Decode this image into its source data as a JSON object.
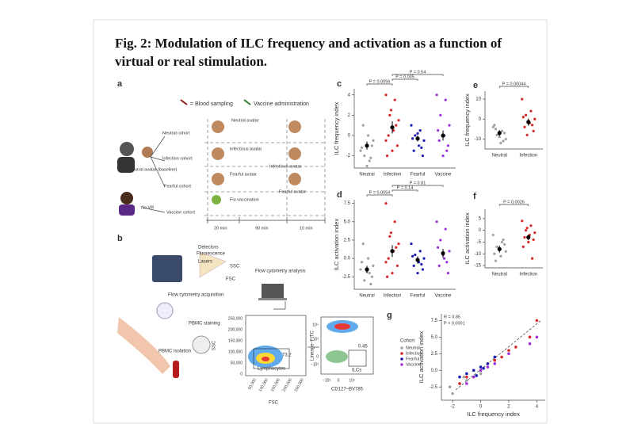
{
  "figure": {
    "title": "Fig. 2: Modulation of ILC frequency and activation as a function of virtual or real stimulation.",
    "panel_labels": [
      "a",
      "b",
      "c",
      "d",
      "e",
      "f",
      "g"
    ],
    "a": {
      "texts": [
        "= Blood sampling",
        "Vaccine administration",
        "Neutral avatar",
        "Neutral cohort",
        "Neutral avatar (baseline)",
        "Infection cohort",
        "Infectious avatar",
        "Fearful cohort",
        "Fearful avatar",
        "No VR",
        "Vaccine cohort",
        "Flu vaccination",
        "Infectious avatar",
        "Fearful avatar",
        "20 min",
        "90 min",
        "10 min"
      ]
    },
    "b": {
      "texts": [
        "Detectors",
        "Fluorescence",
        "Lasers",
        "SSC",
        "FSC",
        "Flow cytometry analysis",
        "Flow cytometry acquisition",
        "PBMC staining",
        "PBMC isolation",
        "250,000",
        "200,000",
        "150,000",
        "100,000",
        "50,000",
        "0",
        "50,000",
        "100,000",
        "150,000",
        "200,000",
        "250,000",
        "SSC",
        "FSC",
        "Lymphocytes",
        "73.2",
        "Lineage–FITC",
        "CD127–BV785",
        "ILCs",
        "0.45",
        "10⁴",
        "10³",
        "0",
        "−10³",
        "−10³",
        "0",
        "10³"
      ]
    }
  },
  "chart_data": [
    {
      "type": "strip",
      "ylabel": "ILC frequency index",
      "categories": [
        "Neutral",
        "Infection",
        "Fearful",
        "Vaccine"
      ],
      "colors": [
        "#a0a0a0",
        "#d62728",
        "#1c1cb0",
        "#9b30d9"
      ],
      "points": [
        [
          -1.5,
          -2.5,
          -2,
          -0.5,
          0,
          1,
          -1,
          -3,
          -1.2,
          -2.2
        ],
        [
          4,
          3.5,
          2,
          1.5,
          0.5,
          0,
          -1,
          -1.5,
          -2,
          1,
          2.5,
          -0.5
        ],
        [
          1,
          0.5,
          0,
          -0.5,
          -1,
          -1.5,
          -2,
          0.2,
          -0.3,
          -1.2
        ],
        [
          4,
          3.5,
          2,
          1,
          0,
          -0.5,
          -1,
          -2,
          0.5,
          -1.5
        ]
      ],
      "means": [
        -1,
        0.8,
        -0.3,
        0
      ],
      "errors": [
        0.4,
        0.6,
        0.3,
        0.5
      ],
      "ylim": [
        -3.2,
        4.6
      ],
      "yticks": [
        -2,
        0,
        2,
        4
      ],
      "annotations": [
        "P = 0.0056",
        "P = 0.035",
        "P = 0.54"
      ]
    },
    {
      "type": "strip",
      "ylabel": "ILC activation index",
      "categories": [
        "Neutral",
        "Infection",
        "Fearful",
        "Vaccine"
      ],
      "colors": [
        "#a0a0a0",
        "#d62728",
        "#1c1cb0",
        "#9b30d9"
      ],
      "points": [
        [
          -1.5,
          -2,
          -3,
          -1,
          0,
          2,
          -2.5,
          -1.8,
          -0.5,
          -3.5
        ],
        [
          7.5,
          5,
          3,
          2,
          1,
          0,
          -1,
          -2,
          -2.5,
          1.5,
          3.5,
          -0.5
        ],
        [
          2,
          1,
          0.5,
          0,
          -0.5,
          -1,
          -1.5,
          -2,
          0.3,
          -0.8
        ],
        [
          5,
          4,
          2.5,
          1,
          0,
          -1,
          -2,
          0.5,
          1.5,
          -0.5
        ]
      ],
      "means": [
        -1.5,
        1,
        -0.2,
        0.7
      ],
      "errors": [
        0.5,
        0.8,
        0.5,
        0.6
      ],
      "ylim": [
        -4.2,
        8
      ],
      "yticks": [
        {
          "value": -2.5,
          "label": "-2.5"
        },
        {
          "value": 0,
          "label": "0.0"
        },
        {
          "value": 2.5,
          "label": "2.5"
        },
        {
          "value": 5,
          "label": "5.0"
        },
        {
          "value": 7.5,
          "label": "7.5"
        }
      ],
      "annotations": [
        "P = 0.0054",
        "P = 0.14",
        "P = 0.81"
      ]
    },
    {
      "type": "strip",
      "ylabel": "ILC frequency index",
      "categories": [
        "Neutral",
        "Infection"
      ],
      "colors": [
        "#a0a0a0",
        "#d62728"
      ],
      "points": [
        [
          -4,
          -6,
          -8,
          -10,
          -12,
          -5,
          -7,
          -9,
          -3,
          -11
        ],
        [
          10,
          4,
          2,
          0,
          -2,
          -4,
          -6,
          -1,
          1,
          -3,
          -8
        ]
      ],
      "means": [
        -7,
        -1.5
      ],
      "errors": [
        1.5,
        1.8
      ],
      "ylim": [
        -15,
        14
      ],
      "yticks": [
        -10,
        0,
        10
      ],
      "annotations": [
        "P = 0.00044"
      ]
    },
    {
      "type": "strip",
      "ylabel": "ILC activation index",
      "categories": [
        "Neutral",
        "Infection"
      ],
      "colors": [
        "#a0a0a0",
        "#d62728"
      ],
      "points": [
        [
          -2,
          -5,
          -7,
          -9,
          -11,
          -13,
          -6,
          -8,
          -10,
          -4
        ],
        [
          4,
          2,
          0,
          -1,
          -2,
          -3,
          -4,
          -5,
          -7,
          -12,
          1
        ]
      ],
      "means": [
        -8,
        -3
      ],
      "errors": [
        1.5,
        1.2
      ],
      "ylim": [
        -16,
        9
      ],
      "yticks": [
        -15,
        -10,
        -5,
        0,
        5
      ],
      "annotations": [
        "P = 0.0026"
      ]
    },
    {
      "type": "scatter",
      "xlabel": "ILC frequency index",
      "ylabel": "ILC activation index",
      "legend_title": "Cohort",
      "annotations": [
        "R = 0.85",
        "P = 0.0001"
      ],
      "series": [
        {
          "name": "Neutral",
          "color": "#a0a0a0",
          "x": [
            -2,
            -1.5,
            -1,
            -0.5,
            0,
            1,
            -2.2,
            -1.2
          ],
          "y": [
            -3.5,
            -2,
            -1.5,
            0,
            -0.5,
            2,
            -2.5,
            -1
          ]
        },
        {
          "name": "Infection",
          "color": "#d62728",
          "x": [
            4,
            3.5,
            2,
            1.5,
            0.5,
            0,
            -1,
            -1.5,
            2.5,
            1
          ],
          "y": [
            7.5,
            5,
            3,
            2,
            1,
            0,
            -1,
            -2,
            3.5,
            1.5
          ]
        },
        {
          "name": "Fearful",
          "color": "#1c1cb0",
          "x": [
            1,
            0.5,
            0,
            -0.5,
            -1,
            -1.5,
            0.2,
            -0.3
          ],
          "y": [
            2,
            1,
            0.5,
            0,
            -0.5,
            -1,
            0.3,
            -0.8
          ]
        },
        {
          "name": "Vaccine",
          "color": "#9b30d9",
          "x": [
            4,
            3.5,
            2,
            1,
            0,
            -0.5,
            -1,
            0.5
          ],
          "y": [
            5,
            4,
            2.5,
            1,
            0,
            -1,
            -2,
            0.5
          ]
        }
      ],
      "xlim": [
        -2.8,
        4.6
      ],
      "xticks": [
        -2,
        0,
        2,
        4
      ],
      "ylim": [
        -4.5,
        8.5
      ],
      "yticks": [
        {
          "value": -2.5,
          "label": "-2.5"
        },
        {
          "value": 0,
          "label": "0.0"
        },
        {
          "value": 2.5,
          "label": "2.5"
        },
        {
          "value": 5,
          "label": "5.0"
        },
        {
          "value": 7.5,
          "label": "7.5"
        }
      ]
    }
  ]
}
